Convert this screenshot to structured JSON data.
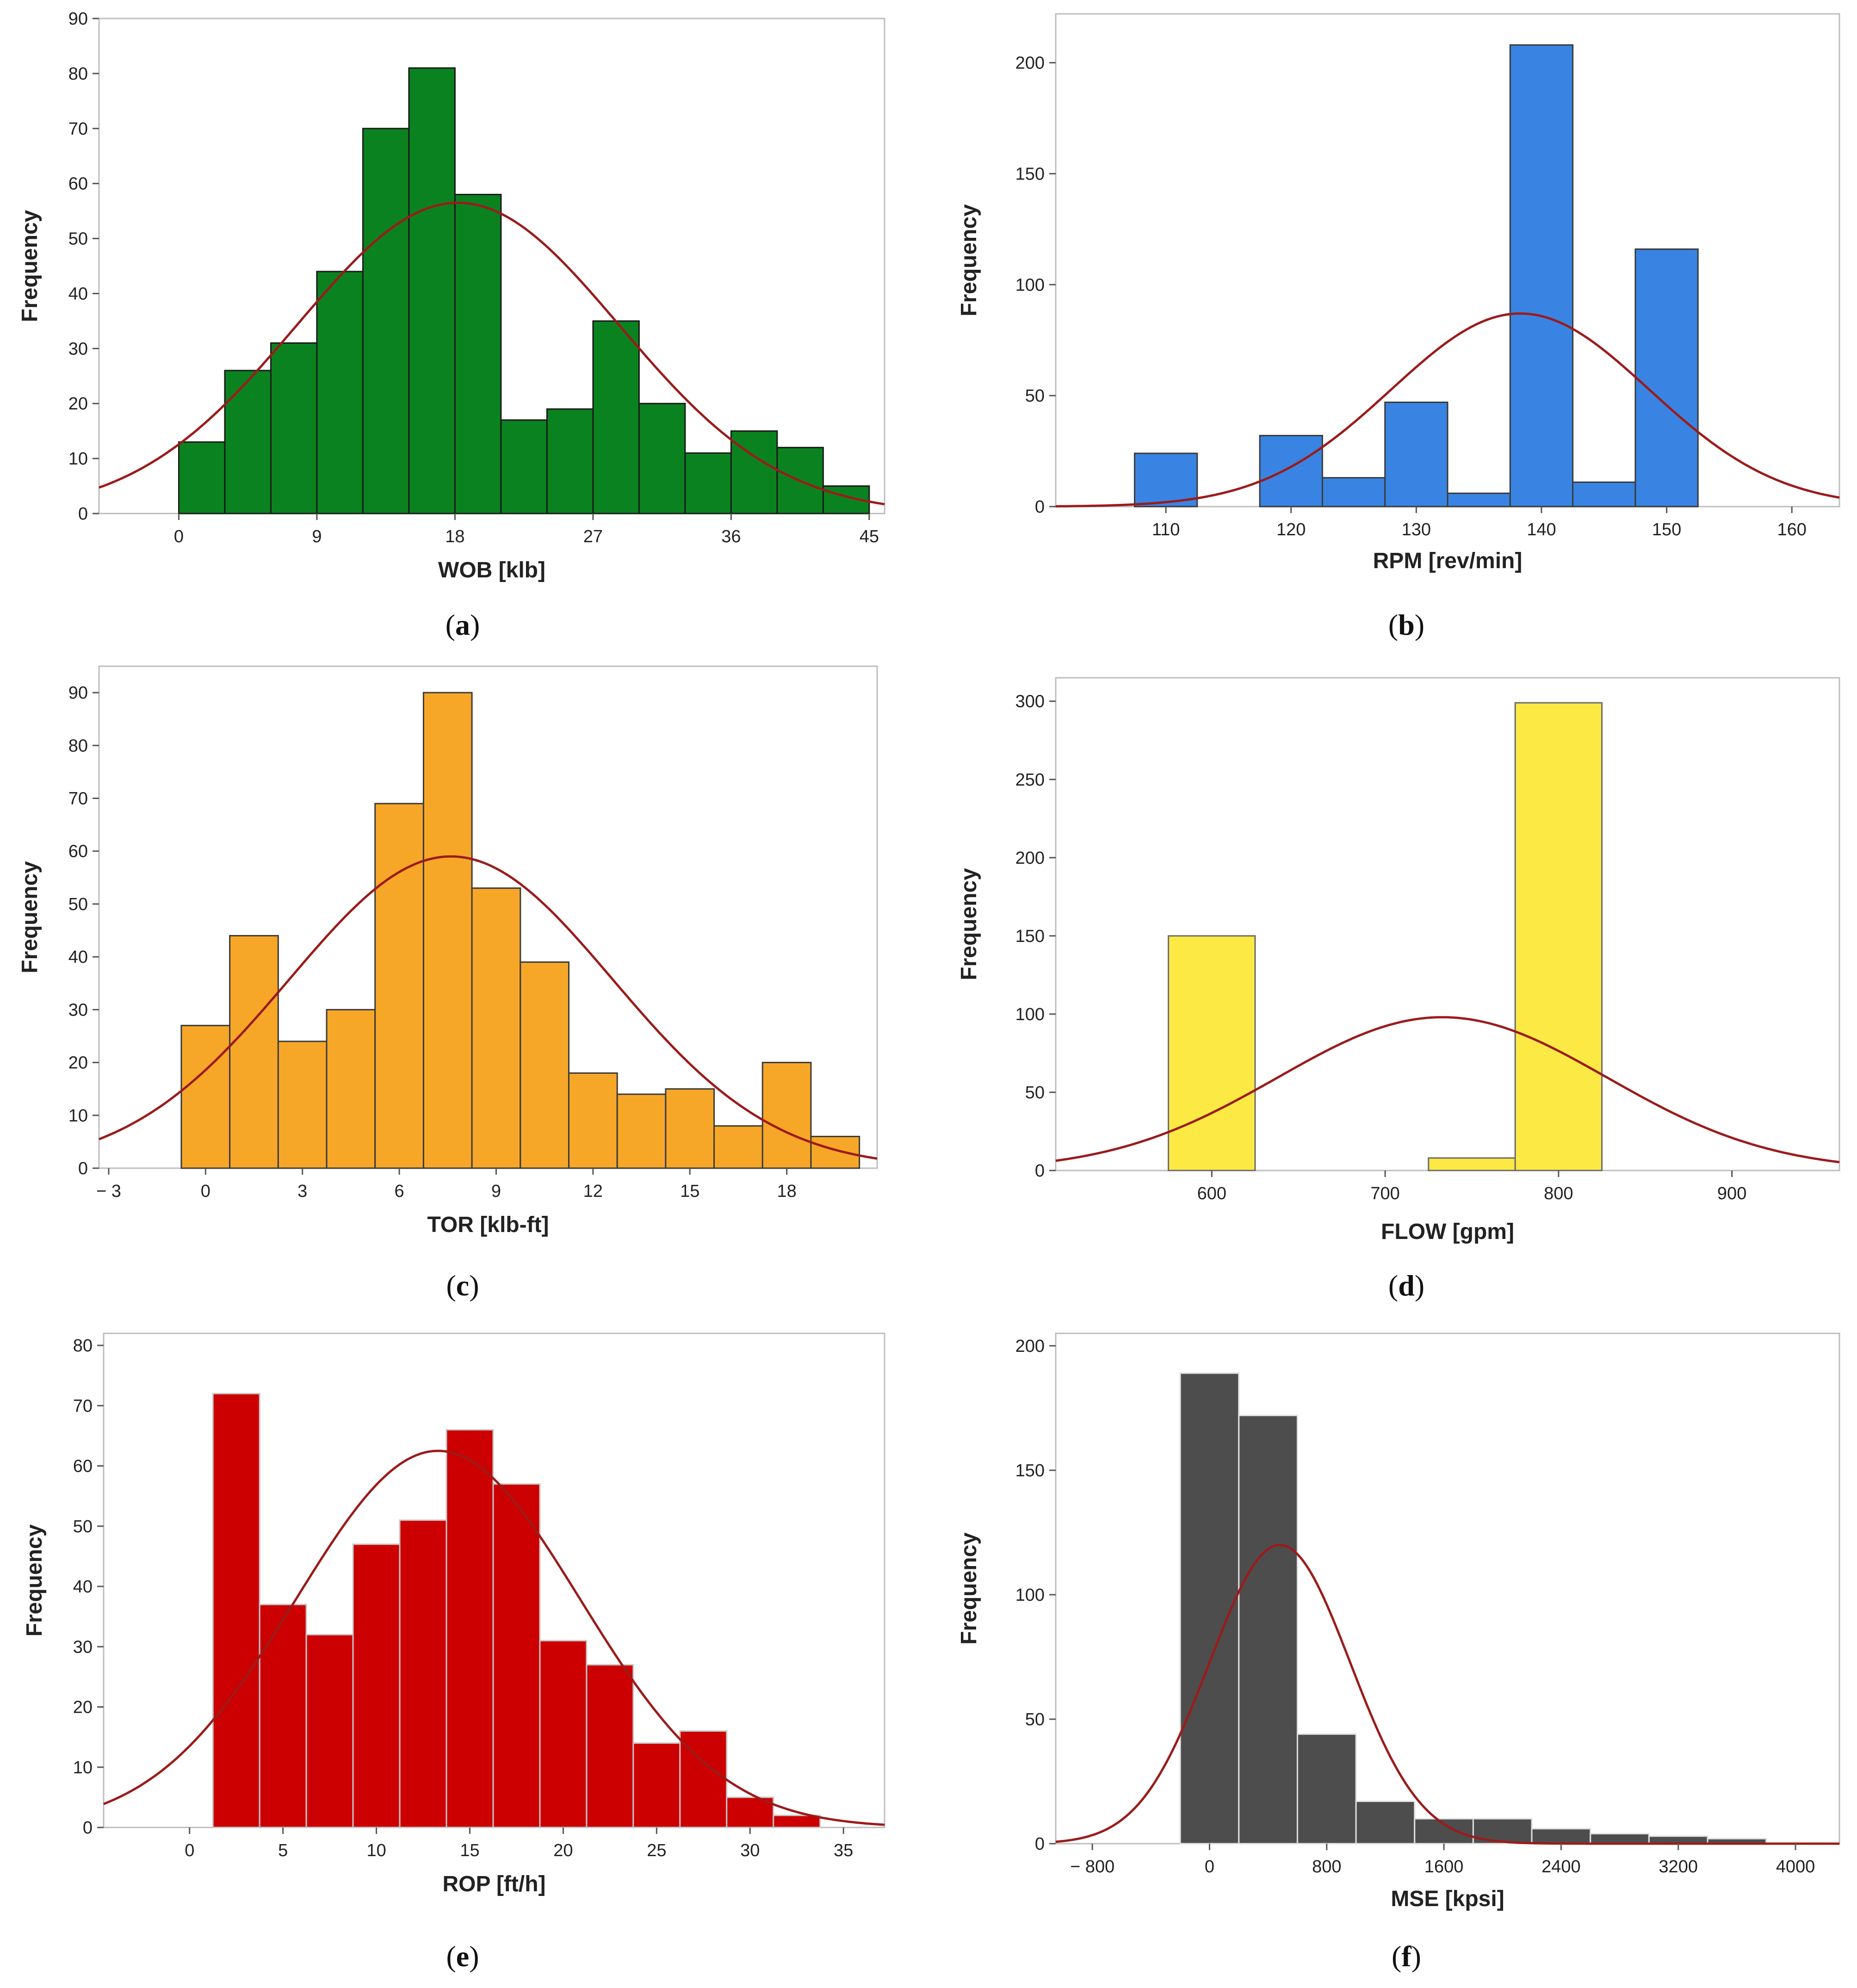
{
  "chart_data": [
    {
      "type": "bar",
      "id": "a",
      "caption": "(a)",
      "caption_letter": "a",
      "xlabel": "WOB [klb]",
      "ylabel": "Frequency",
      "bin_width": 3,
      "bins": [
        {
          "x0": 0,
          "x1": 3,
          "value": 13
        },
        {
          "x0": 3,
          "x1": 6,
          "value": 26
        },
        {
          "x0": 6,
          "x1": 9,
          "value": 31
        },
        {
          "x0": 9,
          "x1": 12,
          "value": 44
        },
        {
          "x0": 12,
          "x1": 15,
          "value": 70
        },
        {
          "x0": 15,
          "x1": 18,
          "value": 81
        },
        {
          "x0": 18,
          "x1": 21,
          "value": 58
        },
        {
          "x0": 21,
          "x1": 24,
          "value": 17
        },
        {
          "x0": 24,
          "x1": 27,
          "value": 19
        },
        {
          "x0": 27,
          "x1": 30,
          "value": 35
        },
        {
          "x0": 30,
          "x1": 33,
          "value": 20
        },
        {
          "x0": 33,
          "x1": 36,
          "value": 11
        },
        {
          "x0": 36,
          "x1": 39,
          "value": 15
        },
        {
          "x0": 39,
          "x1": 42,
          "value": 12
        },
        {
          "x0": 42,
          "x1": 45,
          "value": 5
        }
      ],
      "xlim": [
        -5.2,
        46
      ],
      "ylim": [
        0,
        90
      ],
      "xticks": [
        0,
        9,
        18,
        27,
        36,
        45
      ],
      "xtick_labels": [
        "0",
        "9",
        "18",
        "27",
        "36",
        "45"
      ],
      "yticks": [
        0,
        10,
        20,
        30,
        40,
        50,
        60,
        70,
        80,
        90
      ],
      "ytick_labels": [
        "0",
        "10",
        "20",
        "30",
        "40",
        "50",
        "60",
        "70",
        "80",
        "90"
      ],
      "normal_fit": {
        "mean": 18.2,
        "sd": 10.5,
        "peak": 56.5
      },
      "colors": {
        "bar": "#0a8220",
        "edge": "#1a1a1a",
        "curve": "#9b1b1b"
      }
    },
    {
      "type": "bar",
      "id": "b",
      "caption": "(b)",
      "caption_letter": "b",
      "xlabel": "RPM [rev/min]",
      "ylabel": "Frequency",
      "bin_width": 5,
      "bins": [
        {
          "x0": 107.5,
          "x1": 112.5,
          "value": 24
        },
        {
          "x0": 112.5,
          "x1": 117.5,
          "value": 0
        },
        {
          "x0": 117.5,
          "x1": 122.5,
          "value": 32
        },
        {
          "x0": 122.5,
          "x1": 127.5,
          "value": 13
        },
        {
          "x0": 127.5,
          "x1": 132.5,
          "value": 47
        },
        {
          "x0": 132.5,
          "x1": 137.5,
          "value": 6
        },
        {
          "x0": 137.5,
          "x1": 142.5,
          "value": 208
        },
        {
          "x0": 142.5,
          "x1": 147.5,
          "value": 11
        },
        {
          "x0": 147.5,
          "x1": 152.5,
          "value": 116
        }
      ],
      "xlim": [
        101.2,
        163.8
      ],
      "ylim": [
        0,
        222
      ],
      "xticks": [
        110,
        120,
        130,
        140,
        150,
        160
      ],
      "xtick_labels": [
        "110",
        "120",
        "130",
        "140",
        "150",
        "160"
      ],
      "yticks": [
        0,
        50,
        100,
        150,
        200
      ],
      "ytick_labels": [
        "0",
        "50",
        "100",
        "150",
        "200"
      ],
      "normal_fit": {
        "mean": 138.3,
        "sd": 10.3,
        "peak": 87
      },
      "colors": {
        "bar": "#3984e2",
        "edge": "#3a3a3a",
        "curve": "#9b1b1b"
      }
    },
    {
      "type": "bar",
      "id": "c",
      "caption": "(c)",
      "caption_letter": "c",
      "xlabel": "TOR [klb-ft]",
      "ylabel": "Frequency",
      "bin_width": 1.5,
      "bins": [
        {
          "x0": -0.75,
          "x1": 0.75,
          "value": 27
        },
        {
          "x0": 0.75,
          "x1": 2.25,
          "value": 44
        },
        {
          "x0": 2.25,
          "x1": 3.75,
          "value": 24
        },
        {
          "x0": 3.75,
          "x1": 5.25,
          "value": 30
        },
        {
          "x0": 5.25,
          "x1": 6.75,
          "value": 69
        },
        {
          "x0": 6.75,
          "x1": 8.25,
          "value": 90
        },
        {
          "x0": 8.25,
          "x1": 9.75,
          "value": 53
        },
        {
          "x0": 9.75,
          "x1": 11.25,
          "value": 39
        },
        {
          "x0": 11.25,
          "x1": 12.75,
          "value": 18
        },
        {
          "x0": 12.75,
          "x1": 14.25,
          "value": 14
        },
        {
          "x0": 14.25,
          "x1": 15.75,
          "value": 15
        },
        {
          "x0": 15.75,
          "x1": 17.25,
          "value": 8
        },
        {
          "x0": 17.25,
          "x1": 18.75,
          "value": 20
        },
        {
          "x0": 18.75,
          "x1": 20.25,
          "value": 6
        }
      ],
      "xlim": [
        -3.3,
        20.8
      ],
      "ylim": [
        0,
        95
      ],
      "xticks": [
        -3,
        0,
        3,
        6,
        9,
        12,
        15,
        18
      ],
      "xtick_labels": [
        "− 3",
        "0",
        "3",
        "6",
        "9",
        "12",
        "15",
        "18"
      ],
      "yticks": [
        0,
        10,
        20,
        30,
        40,
        50,
        60,
        70,
        80,
        90
      ],
      "ytick_labels": [
        "0",
        "10",
        "20",
        "30",
        "40",
        "50",
        "60",
        "70",
        "80",
        "90"
      ],
      "normal_fit": {
        "mean": 7.6,
        "sd": 5.0,
        "peak": 59
      },
      "colors": {
        "bar": "#f7a728",
        "edge": "#3a3a3a",
        "curve": "#9b1b1b"
      }
    },
    {
      "type": "bar",
      "id": "d",
      "caption": "(d)",
      "caption_letter": "d",
      "xlabel": "FLOW [gpm]",
      "ylabel": "Frequency",
      "bin_width": 50,
      "bins": [
        {
          "x0": 575,
          "x1": 625,
          "value": 150
        },
        {
          "x0": 625,
          "x1": 675,
          "value": 0
        },
        {
          "x0": 675,
          "x1": 725,
          "value": 0
        },
        {
          "x0": 725,
          "x1": 775,
          "value": 8
        },
        {
          "x0": 775,
          "x1": 825,
          "value": 299
        }
      ],
      "xlim": [
        510,
        962
      ],
      "ylim": [
        0,
        315
      ],
      "xticks": [
        600,
        700,
        800,
        900
      ],
      "xtick_labels": [
        "600",
        "700",
        "800",
        "900"
      ],
      "yticks": [
        0,
        50,
        100,
        150,
        200,
        250,
        300
      ],
      "ytick_labels": [
        "0",
        "50",
        "100",
        "150",
        "200",
        "250",
        "300"
      ],
      "normal_fit": {
        "mean": 733,
        "sd": 95,
        "peak": 98
      },
      "colors": {
        "bar": "#fde944",
        "edge": "#6a6a6a",
        "curve": "#9b1b1b"
      }
    },
    {
      "type": "bar",
      "id": "e",
      "caption": "(e)",
      "caption_letter": "e",
      "xlabel": "ROP [ft/h]",
      "ylabel": "Frequency",
      "bin_width": 2.5,
      "bins": [
        {
          "x0": 1.25,
          "x1": 3.75,
          "value": 72
        },
        {
          "x0": 3.75,
          "x1": 6.25,
          "value": 37
        },
        {
          "x0": 6.25,
          "x1": 8.75,
          "value": 32
        },
        {
          "x0": 8.75,
          "x1": 11.25,
          "value": 47
        },
        {
          "x0": 11.25,
          "x1": 13.75,
          "value": 51
        },
        {
          "x0": 13.75,
          "x1": 16.25,
          "value": 66
        },
        {
          "x0": 16.25,
          "x1": 18.75,
          "value": 57
        },
        {
          "x0": 18.75,
          "x1": 21.25,
          "value": 31
        },
        {
          "x0": 21.25,
          "x1": 23.75,
          "value": 27
        },
        {
          "x0": 23.75,
          "x1": 26.25,
          "value": 14
        },
        {
          "x0": 26.25,
          "x1": 28.75,
          "value": 16
        },
        {
          "x0": 28.75,
          "x1": 31.25,
          "value": 5
        },
        {
          "x0": 31.25,
          "x1": 33.75,
          "value": 2
        }
      ],
      "xlim": [
        -4.6,
        37.2
      ],
      "ylim": [
        0,
        82
      ],
      "xticks": [
        0,
        5,
        10,
        15,
        20,
        25,
        30,
        35
      ],
      "xtick_labels": [
        "0",
        "5",
        "10",
        "15",
        "20",
        "25",
        "30",
        "35"
      ],
      "yticks": [
        0,
        10,
        20,
        30,
        40,
        50,
        60,
        70,
        80
      ],
      "ytick_labels": [
        "0",
        "10",
        "20",
        "30",
        "40",
        "50",
        "60",
        "70",
        "80"
      ],
      "normal_fit": {
        "mean": 13.3,
        "sd": 7.6,
        "peak": 62.5
      },
      "colors": {
        "bar": "#cc0000",
        "edge": "#c8c8c8",
        "curve": "#9b1b1b"
      }
    },
    {
      "type": "bar",
      "id": "f",
      "caption": "(f)",
      "caption_letter": "f",
      "xlabel": "MSE [kpsi]",
      "ylabel": "Frequency",
      "bin_width": 400,
      "bins": [
        {
          "x0": -200,
          "x1": 200,
          "value": 189
        },
        {
          "x0": 200,
          "x1": 600,
          "value": 172
        },
        {
          "x0": 600,
          "x1": 1000,
          "value": 44
        },
        {
          "x0": 1000,
          "x1": 1400,
          "value": 17
        },
        {
          "x0": 1400,
          "x1": 1800,
          "value": 10
        },
        {
          "x0": 1800,
          "x1": 2200,
          "value": 10
        },
        {
          "x0": 2200,
          "x1": 2600,
          "value": 6
        },
        {
          "x0": 2600,
          "x1": 3000,
          "value": 4
        },
        {
          "x0": 3000,
          "x1": 3400,
          "value": 3
        },
        {
          "x0": 3400,
          "x1": 3800,
          "value": 2
        }
      ],
      "xlim": [
        -1050,
        4300
      ],
      "ylim": [
        0,
        205
      ],
      "xticks": [
        -800,
        0,
        800,
        1600,
        2400,
        3200,
        4000
      ],
      "xtick_labels": [
        "− 800",
        "0",
        "800",
        "1600",
        "2400",
        "3200",
        "4000"
      ],
      "yticks": [
        0,
        50,
        100,
        150,
        200
      ],
      "ytick_labels": [
        "0",
        "50",
        "100",
        "150",
        "200"
      ],
      "normal_fit": {
        "mean": 480,
        "sd": 480,
        "peak": 120
      },
      "colors": {
        "bar": "#4d4d4d",
        "edge": "#e0e0e0",
        "curve": "#9b1b1b"
      }
    }
  ]
}
